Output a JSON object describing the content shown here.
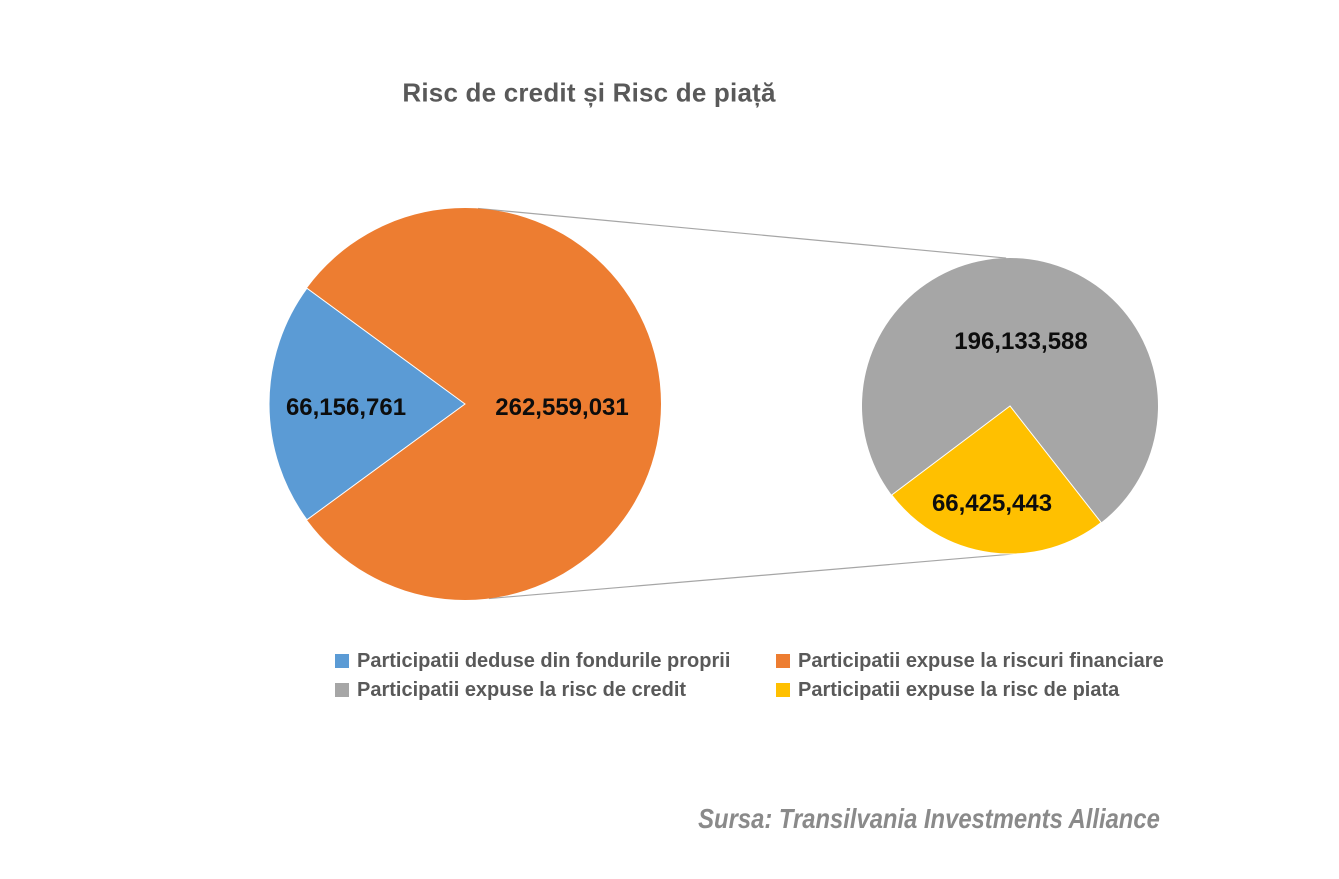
{
  "title": "Risc de credit și Risc de piață",
  "chart_data": {
    "type": "pie",
    "subtype": "pie-of-pie",
    "title": "Risc de credit și Risc de piață",
    "grid": false,
    "legend_position": "bottom",
    "main_pie": {
      "highlight_center_deg": 180,
      "slices": [
        {
          "label": "Participatii deduse din fondurile proprii",
          "value": 66156761,
          "display": "66,156,761",
          "color": "#5B9BD5",
          "label_radius_frac": 0.61
        },
        {
          "label": "Participatii expuse la riscuri financiare",
          "value": 262559031,
          "display": "262,559,031",
          "color": "#ED7D31",
          "label_radius_frac": 0.5
        }
      ]
    },
    "secondary_pie": {
      "breaks_down": "Participatii expuse la riscuri financiare",
      "highlight_center_deg": 262.5,
      "slices": [
        {
          "label": "Participatii expuse la risc de credit",
          "value": 196133588,
          "display": "196,133,588",
          "color": "#A6A6A6",
          "label_radius_frac": 0.44
        },
        {
          "label": "Participatii expuse la risc de piata",
          "value": 66425443,
          "display": "66,425,443",
          "color": "#FFC000",
          "label_radius_frac": 0.67
        }
      ]
    }
  },
  "legend": {
    "items": [
      {
        "label": "Participatii deduse din fondurile proprii",
        "color": "#5B9BD5"
      },
      {
        "label": "Participatii expuse la riscuri financiare",
        "color": "#ED7D31"
      },
      {
        "label": "Participatii expuse la risc de credit",
        "color": "#A6A6A6"
      },
      {
        "label": "Participatii expuse la risc de piata",
        "color": "#FFC000"
      }
    ]
  },
  "source": {
    "text": "Sursa: Transilvania Investments Alliance"
  },
  "colors": {
    "background": "#FFFFFF",
    "title_text": "#595959",
    "legend_text": "#595959",
    "data_label_text": "#0D0D0D",
    "source_text": "#8A8A8A",
    "connector_line": "#A6A6A6"
  }
}
